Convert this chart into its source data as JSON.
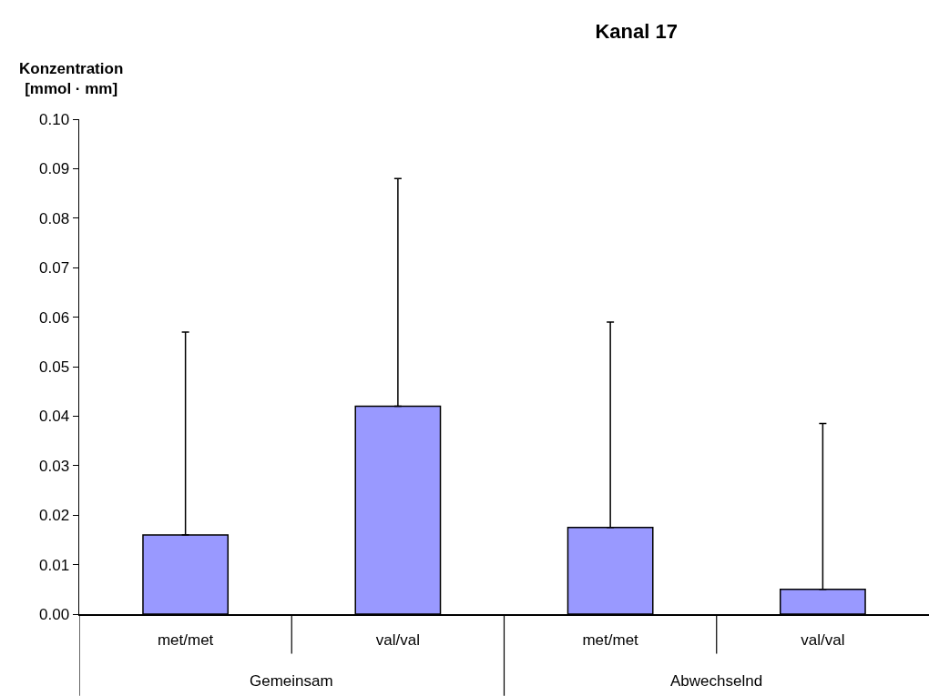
{
  "chart_data": {
    "type": "bar",
    "title": "Kanal 17",
    "ylabel": "Konzentration\n[mmol · mm]",
    "categories": [
      "met/met",
      "val/val",
      "met/met",
      "val/val"
    ],
    "values": [
      0.016,
      0.042,
      0.0175,
      0.005
    ],
    "errors": [
      [
        0.016,
        0.057
      ],
      [
        0.042,
        0.088
      ],
      [
        0.0175,
        0.059
      ],
      [
        0.005,
        0.0385
      ]
    ],
    "color": "#9999ff",
    "annotations": [
      "Gemeinsam",
      "Abwechselnd"
    ],
    "ylim": [
      0,
      0.1
    ],
    "yticks": [
      {
        "value": 0,
        "label": "0.00"
      },
      {
        "value": 0.01,
        "label": "0.01"
      },
      {
        "value": 0.02,
        "label": "0.02"
      },
      {
        "value": 0.03,
        "label": "0.03"
      },
      {
        "value": 0.04,
        "label": "0.04"
      },
      {
        "value": 0.05,
        "label": "0.05"
      },
      {
        "value": 0.06,
        "label": "0.06"
      },
      {
        "value": 0.07,
        "label": "0.07"
      },
      {
        "value": 0.08,
        "label": "0.08"
      },
      {
        "value": 0.09,
        "label": "0.09"
      },
      {
        "value": 0.1,
        "label": "0.10"
      }
    ],
    "grid": false
  }
}
